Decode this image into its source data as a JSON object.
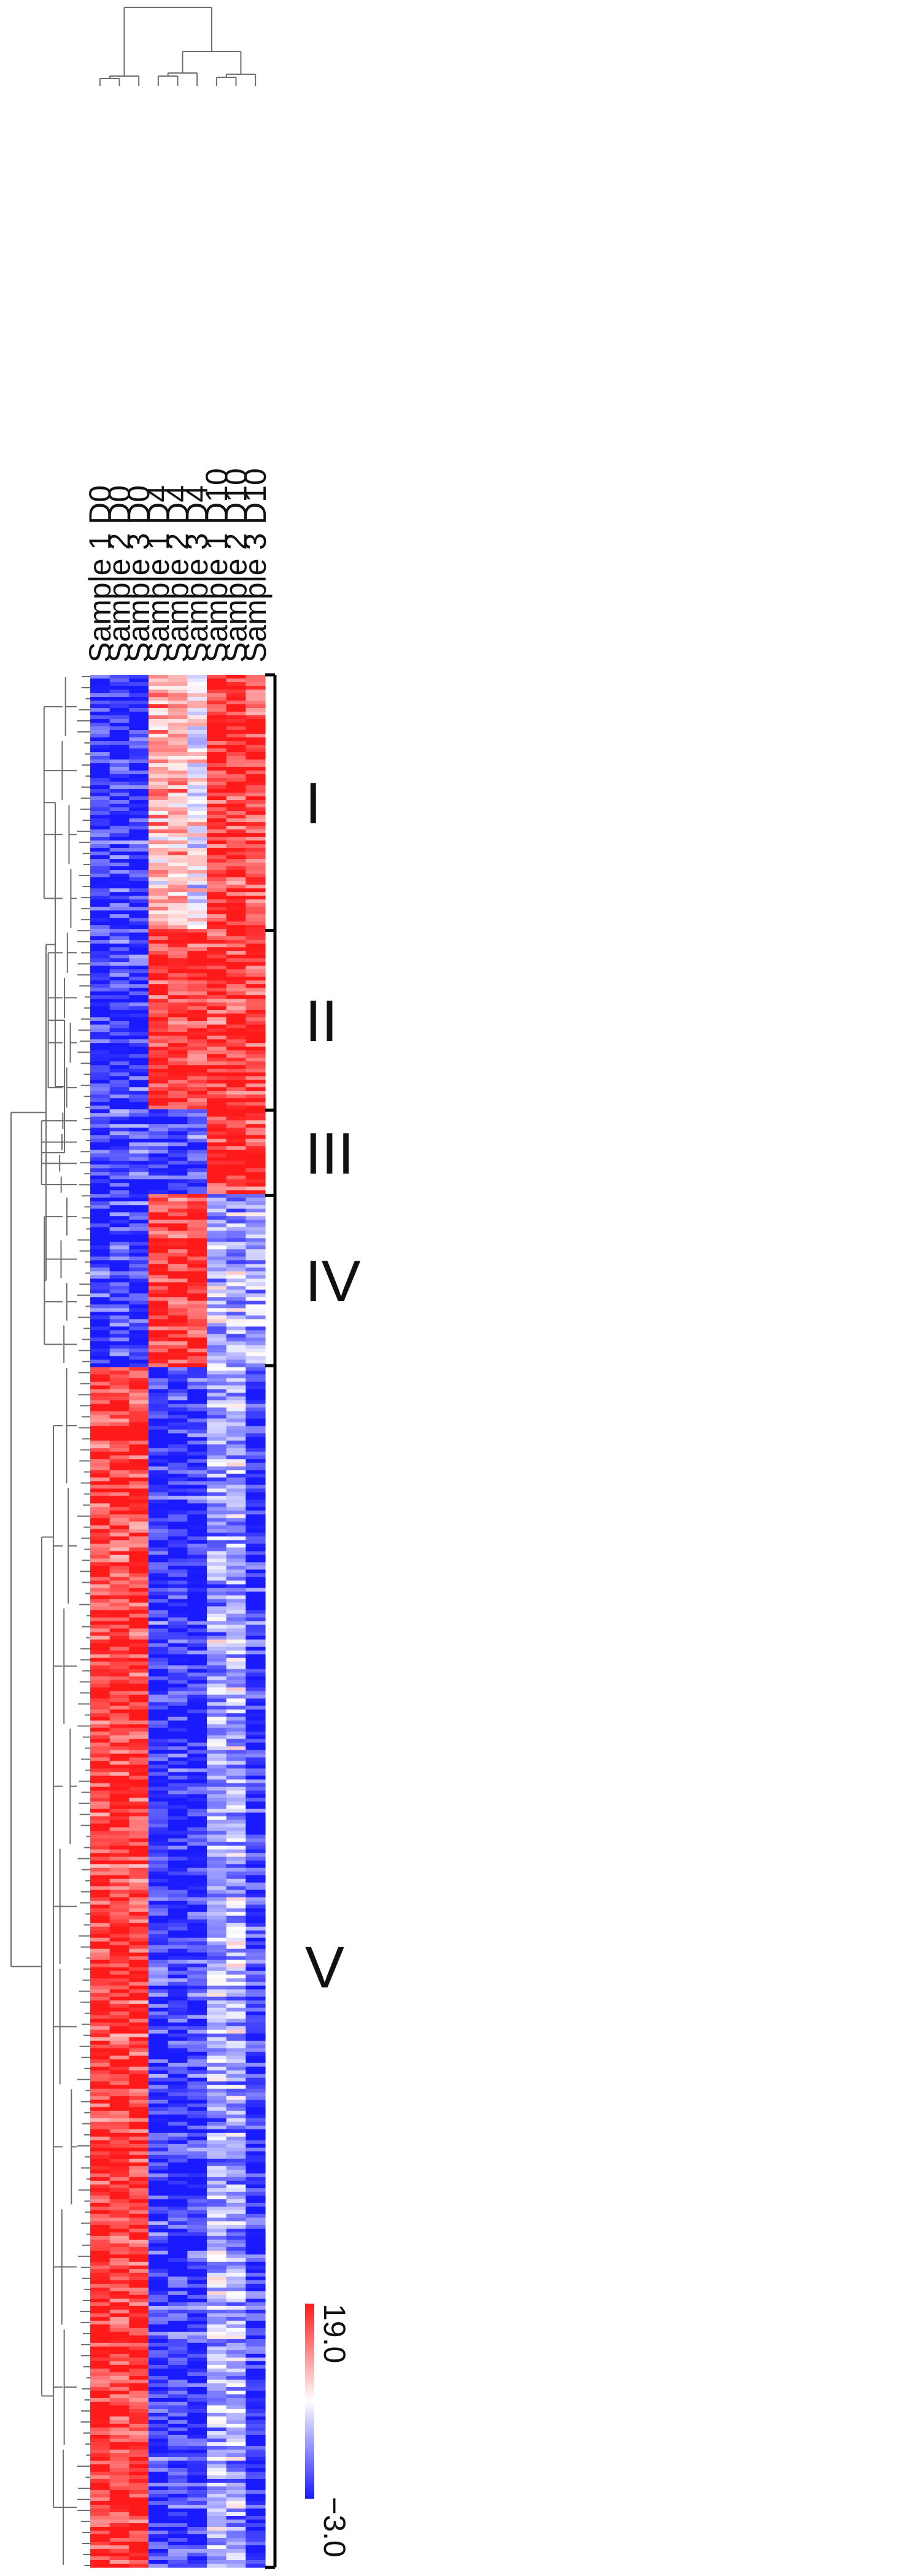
{
  "chart_data": {
    "type": "heatmap",
    "title": "",
    "columns": [
      "Sample 1 D0",
      "Sample 2 D0",
      "Sample 3 D0",
      "Sample 1 D4",
      "Sample 2 D4",
      "Sample 3 D4",
      "Sample 1 D10",
      "Sample 2 D10",
      "Sample 3 D10"
    ],
    "color_scale": {
      "min": -3.0,
      "max": 19.0,
      "min_label": "−3.0",
      "max_label": "19.0",
      "low_color": "#1a1aff",
      "mid_color": "#ffffff",
      "high_color": "#ff1a1a"
    },
    "clusters": [
      {
        "label": "I",
        "approx_relative_size": 0.135,
        "pattern": [
          "low",
          "low",
          "low",
          "mid-high",
          "mid-high",
          "mid",
          "high",
          "high",
          "high"
        ]
      },
      {
        "label": "II",
        "approx_relative_size": 0.095,
        "pattern": [
          "low",
          "low",
          "low",
          "high",
          "high",
          "high",
          "high",
          "high",
          "high"
        ]
      },
      {
        "label": "III",
        "approx_relative_size": 0.045,
        "pattern": [
          "low",
          "low",
          "low",
          "low",
          "low",
          "low",
          "high",
          "high",
          "high"
        ]
      },
      {
        "label": "IV",
        "approx_relative_size": 0.09,
        "pattern": [
          "low",
          "low",
          "low",
          "high",
          "high",
          "high",
          "mid-low",
          "mid-low",
          "mid-low"
        ]
      },
      {
        "label": "V",
        "approx_relative_size": 0.635,
        "pattern": [
          "high",
          "high",
          "high",
          "low",
          "low",
          "low",
          "mid-low",
          "mid-low",
          "low"
        ]
      }
    ],
    "row_dendrogram": true,
    "column_dendrogram": {
      "groups": [
        [
          "Sample 1 D0",
          "Sample 2 D0",
          "Sample 3 D0"
        ],
        [
          "Sample 1 D4",
          "Sample 2 D4",
          "Sample 3 D4"
        ],
        [
          "Sample 1 D10",
          "Sample 2 D10",
          "Sample 3 D10"
        ]
      ],
      "merge_order": "D4 and D10 groups merge first, then join D0"
    }
  }
}
